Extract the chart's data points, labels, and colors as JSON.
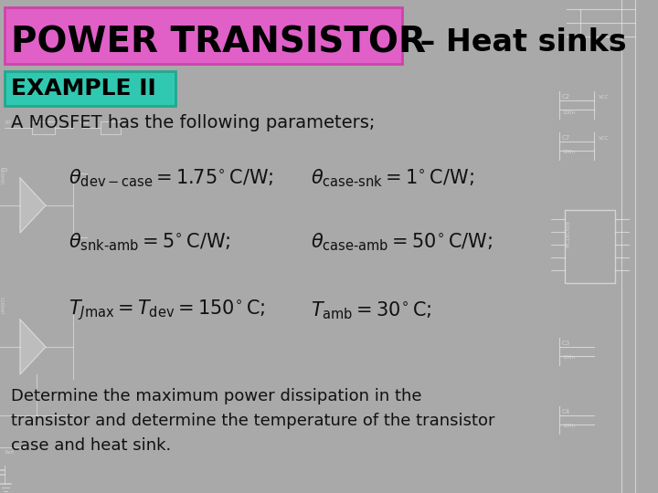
{
  "background_color": "#a8a8a8",
  "title_box_text": "POWER TRANSISTOR",
  "title_box_bg": "#e060c8",
  "title_box_border": "#cc44aa",
  "subtitle_text": " – Heat sinks",
  "example_box_text": "EXAMPLE II",
  "example_box_bg": "#30c8b0",
  "example_box_border": "#20a890",
  "intro_text": "A MOSFET has the following parameters;",
  "determine_text": "Determine the maximum power dissipation in the\ntransistor and determine the temperature of the transistor\ncase and heat sink.",
  "text_color": "#111111",
  "title_text_color": "#000000",
  "circuit_color": "#d8d8d8",
  "white_line": "#e8e8e8"
}
